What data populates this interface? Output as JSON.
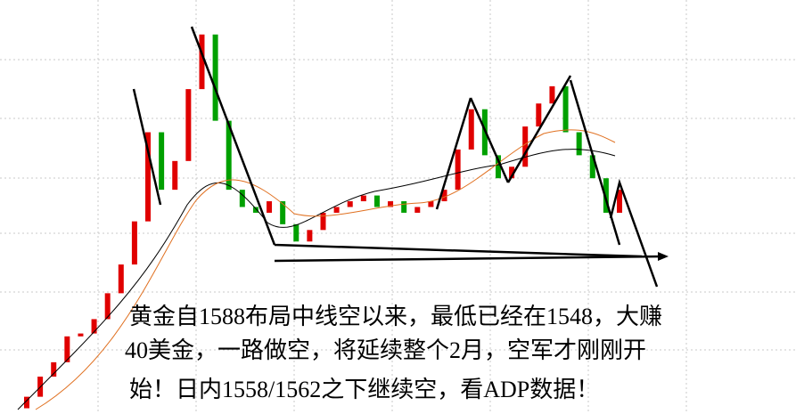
{
  "chart_data": {
    "type": "candlestick",
    "open": [
      1522,
      1524,
      1527.5,
      1530,
      1534.5,
      1535,
      1537.5,
      1542,
      1547,
      1554.5,
      1570,
      1560,
      1565,
      1577.5,
      1587,
      1572,
      1560,
      1557,
      1556,
      1558,
      1554,
      1551,
      1553,
      1556,
      1557,
      1558,
      1559,
      1557,
      1558,
      1556,
      1557,
      1558,
      1560,
      1567,
      1574,
      1566,
      1562,
      1564,
      1571,
      1575,
      1578,
      1570,
      1566,
      1562,
      1556
    ],
    "close": [
      1524,
      1527.5,
      1530,
      1534.5,
      1535,
      1537.5,
      1542,
      1547,
      1554.5,
      1570,
      1560,
      1565,
      1577.5,
      1587,
      1572,
      1560,
      1557,
      1556,
      1558,
      1554,
      1551,
      1553,
      1556,
      1557,
      1558,
      1559,
      1557,
      1558,
      1556,
      1557,
      1558,
      1560,
      1567,
      1574,
      1566,
      1562,
      1564,
      1571,
      1575,
      1578,
      1570,
      1566,
      1562,
      1556,
      1560
    ],
    "up_color": "#e00000",
    "down_color": "#00a000",
    "ylim": [
      1521,
      1593
    ],
    "annotation": [
      "黄金自1588布局中线空以来，最低已经在1548，大赚",
      "40美金，一路做空，将延续整个2月，空军才刚刚开",
      "始！日内1558/1562之下继续空，看ADP数据！"
    ]
  }
}
